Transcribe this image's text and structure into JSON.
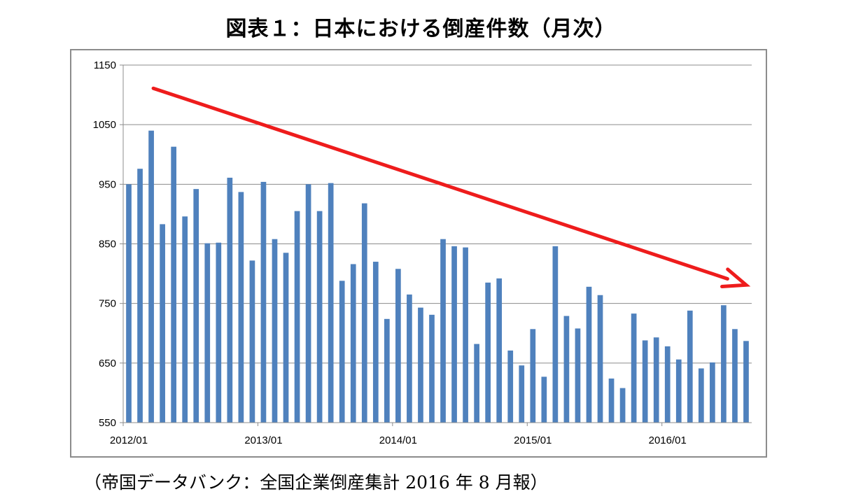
{
  "title": "図表１：日本における倒産件数（月次）",
  "source": "（帝国データバンク：全国企業倒産集計 2016 年 8 月報）",
  "colors": {
    "bar": "#4f81bd",
    "arrow": "#ee1c1c",
    "grid": "#8c8c8c",
    "frame": "#8c8c8c"
  },
  "chart_data": {
    "type": "bar",
    "title": "図表１：日本における倒産件数（月次）",
    "xlabel": "",
    "ylabel": "",
    "ylim": [
      550,
      1150
    ],
    "yticks": [
      550,
      650,
      750,
      850,
      950,
      1050,
      1150
    ],
    "ytick_labels": [
      "550",
      "650",
      "750",
      "850",
      "950",
      "1050",
      "1150"
    ],
    "grid": true,
    "legend": "none",
    "xtick_labels": [
      {
        "category": "2012/01",
        "label": "2012/01"
      },
      {
        "category": "2013/01",
        "label": "2013/01"
      },
      {
        "category": "2014/01",
        "label": "2014/01"
      },
      {
        "category": "2015/01",
        "label": "2015/01"
      },
      {
        "category": "2016/01",
        "label": "2016/01"
      }
    ],
    "categories": [
      "2012/01",
      "2012/02",
      "2012/03",
      "2012/04",
      "2012/05",
      "2012/06",
      "2012/07",
      "2012/08",
      "2012/09",
      "2012/10",
      "2012/11",
      "2012/12",
      "2013/01",
      "2013/02",
      "2013/03",
      "2013/04",
      "2013/05",
      "2013/06",
      "2013/07",
      "2013/08",
      "2013/09",
      "2013/10",
      "2013/11",
      "2013/12",
      "2014/01",
      "2014/02",
      "2014/03",
      "2014/04",
      "2014/05",
      "2014/06",
      "2014/07",
      "2014/08",
      "2014/09",
      "2014/10",
      "2014/11",
      "2014/12",
      "2015/01",
      "2015/02",
      "2015/03",
      "2015/04",
      "2015/05",
      "2015/06",
      "2015/07",
      "2015/08",
      "2015/09",
      "2015/10",
      "2015/11",
      "2015/12",
      "2016/01",
      "2016/02",
      "2016/03",
      "2016/04",
      "2016/05",
      "2016/06",
      "2016/07",
      "2016/08"
    ],
    "values": [
      950,
      976,
      1040,
      883,
      1013,
      896,
      942,
      851,
      852,
      961,
      937,
      822,
      954,
      858,
      835,
      905,
      950,
      905,
      952,
      788,
      816,
      918,
      820,
      724,
      808,
      765,
      743,
      731,
      858,
      846,
      844,
      682,
      785,
      792,
      671,
      646,
      707,
      627,
      846,
      729,
      708,
      778,
      764,
      624,
      608,
      733,
      688,
      693,
      678,
      656,
      738,
      641,
      651,
      747,
      707,
      687
    ],
    "annotations": [
      {
        "type": "arrow",
        "description": "downward trend",
        "from": {
          "category": "2012/03",
          "value": 1111
        },
        "to": {
          "category": "2016/08",
          "value": 781
        }
      }
    ]
  }
}
